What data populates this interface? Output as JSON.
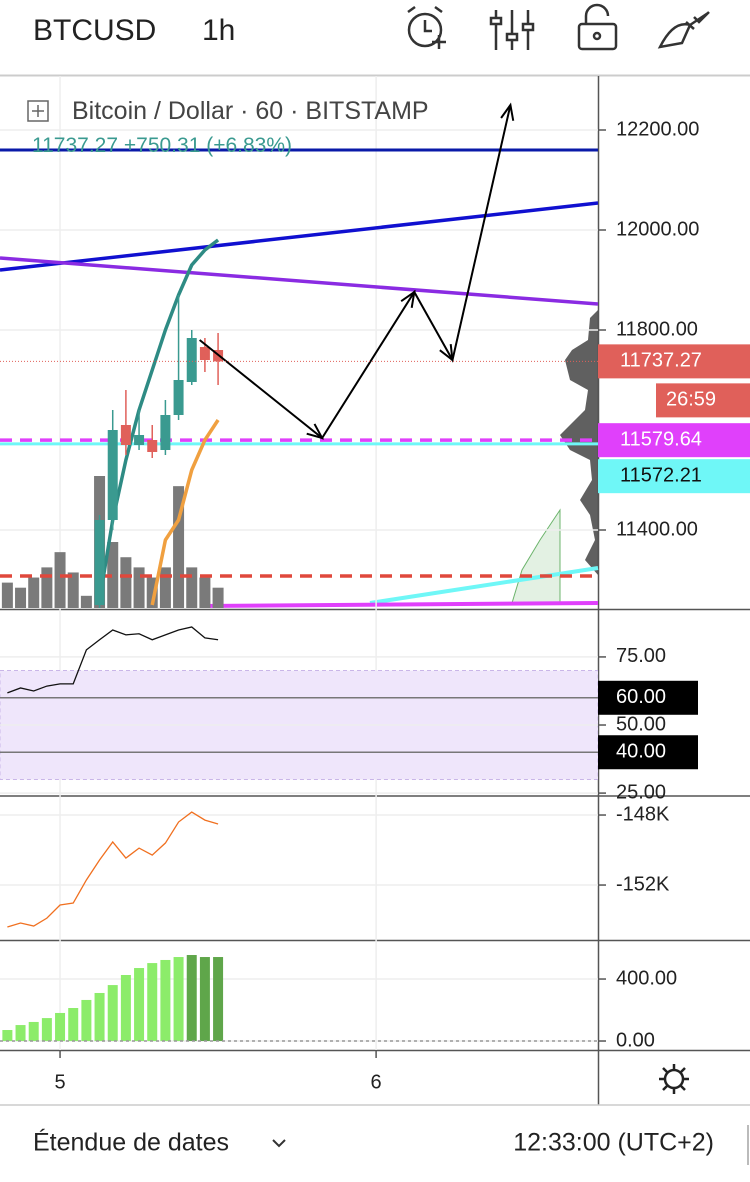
{
  "header": {
    "symbol": "BTCUSD",
    "interval": "1h"
  },
  "footer": {
    "range": "Étendue de dates",
    "time": "12:33:00 (UTC+2)"
  },
  "chart_data": [
    {
      "type": "candlestick",
      "title": "Bitcoin / Dollar",
      "interval": "60",
      "exchange": "BITSTAMP",
      "change": "+750.31",
      "change_percent": "(+6.83%)",
      "countdown": "26:59",
      "xlim": [
        -4.56,
        40.85
      ],
      "xticks": [
        {
          "value": 0,
          "label": "5"
        },
        {
          "value": 24,
          "label": "6"
        }
      ],
      "ylim": [
        11244,
        12308
      ],
      "yticks": [
        {
          "value": 11400,
          "label": "11400.00"
        },
        {
          "value": 11800,
          "label": "11800.00"
        },
        {
          "value": 12000,
          "label": "12000.00"
        },
        {
          "value": 12200,
          "label": "12200.00"
        }
      ],
      "grid": true,
      "x": [
        3,
        4,
        5,
        6,
        7,
        8,
        9,
        10,
        11,
        12
      ],
      "open": [
        11250,
        11420,
        11610,
        11570,
        11580,
        11560,
        11630,
        11696,
        11766,
        11760
      ],
      "high": [
        11430,
        11640,
        11680,
        11640,
        11610,
        11660,
        11870,
        11800,
        11784,
        11794
      ],
      "low": [
        11244,
        11400,
        11550,
        11560,
        11544,
        11550,
        11620,
        11690,
        11716,
        11690
      ],
      "close": [
        11420,
        11600,
        11570,
        11590,
        11556,
        11630,
        11700,
        11784,
        11740,
        11737.27
      ],
      "up_color": "#3a9a90",
      "down_color": "#e0605a",
      "volume": {
        "color": "#7a7a7a",
        "x": [
          -4,
          -3,
          -2,
          -1,
          0,
          1,
          2,
          3,
          4,
          5,
          6,
          7,
          8,
          9,
          10,
          11,
          12
        ],
        "values": [
          25,
          20,
          30,
          40,
          55,
          35,
          12,
          130,
          65,
          50,
          40,
          30,
          40,
          120,
          40,
          30,
          20
        ]
      },
      "ma_series": [
        {
          "color": "#2e8b84",
          "x": [
            3,
            4,
            5,
            6,
            7,
            8,
            9,
            10,
            11,
            12
          ],
          "values": [
            11260,
            11420,
            11540,
            11640,
            11720,
            11800,
            11870,
            11930,
            11960,
            11980
          ]
        },
        {
          "color": "#f0a040",
          "x": [
            7,
            8,
            9,
            10,
            11,
            12
          ],
          "values": [
            11250,
            11380,
            11420,
            11520,
            11580,
            11620
          ]
        }
      ],
      "levels": [
        {
          "value": 12160,
          "color": "#0a1aa8",
          "style": "solid"
        },
        {
          "value": 11308,
          "color": "#e0483c",
          "style": "dashed"
        },
        {
          "value": 11579.64,
          "color": "#e040fb",
          "style": "dashed",
          "labeled": true
        },
        {
          "value": 11572.21,
          "color": "#6ff7f7",
          "style": "solid",
          "labeled": true
        }
      ],
      "trendlines": [
        {
          "color": "#1010d0",
          "x": [
            -4.56,
            40.85
          ],
          "values": [
            11920,
            12054
          ]
        },
        {
          "color": "#8a2be2",
          "x": [
            -4.56,
            40.85
          ],
          "values": [
            11944,
            11852
          ]
        }
      ],
      "projection": {
        "color": "#000000",
        "x": [
          10.6,
          19.9,
          26.9,
          29.8,
          34.2
        ],
        "values": [
          11780,
          11584,
          11876,
          11740,
          12250
        ]
      }
    },
    {
      "type": "line",
      "ylim": [
        24.3,
        91.5
      ],
      "yticks": [
        {
          "value": 25,
          "label": "25.00"
        },
        {
          "value": 50,
          "label": "50.00"
        },
        {
          "value": 75,
          "label": "75.00"
        }
      ],
      "band": [
        30,
        70
      ],
      "band_color": "#efe6fb",
      "guides": [
        {
          "value": 60,
          "label": "60.00"
        },
        {
          "value": 40,
          "label": "40.00"
        }
      ],
      "x": [
        -4,
        -3,
        -2,
        -1,
        0,
        1,
        2,
        3,
        4,
        5,
        6,
        7,
        8,
        9,
        10,
        11,
        12
      ],
      "series": [
        {
          "color": "#111111",
          "values": [
            61.8,
            63.6,
            62.5,
            64.3,
            65.1,
            65.1,
            77.6,
            81.3,
            84.9,
            83.1,
            83.5,
            81.3,
            83.1,
            84.9,
            86.0,
            82.0,
            81.3
          ]
        }
      ]
    },
    {
      "type": "line",
      "ylim": [
        -155140,
        -146970
      ],
      "yticks": [
        {
          "value": -152000,
          "label": "-152K"
        },
        {
          "value": -148000,
          "label": "-148K"
        }
      ],
      "x": [
        -4,
        -3,
        -2,
        -1,
        0,
        1,
        2,
        3,
        4,
        5,
        6,
        7,
        8,
        9,
        10,
        11,
        12
      ],
      "series": [
        {
          "color": "#f07020",
          "values": [
            -154400,
            -154170,
            -154340,
            -153890,
            -153140,
            -153030,
            -151710,
            -150570,
            -149540,
            -150460,
            -149890,
            -150290,
            -149600,
            -148400,
            -147830,
            -148290,
            -148510
          ]
        }
      ]
    },
    {
      "type": "bar",
      "ylim": [
        -58,
        639
      ],
      "yticks": [
        {
          "value": 0,
          "label": "0.00"
        },
        {
          "value": 400,
          "label": "400.00"
        }
      ],
      "x": [
        -4,
        -3,
        -2,
        -1,
        0,
        1,
        2,
        3,
        4,
        5,
        6,
        7,
        8,
        9,
        10,
        11,
        12
      ],
      "values": [
        71,
        103,
        123,
        148,
        181,
        213,
        265,
        310,
        361,
        426,
        471,
        503,
        523,
        542,
        555,
        542,
        542
      ],
      "colors": [
        "#8cec6a",
        "#8cec6a",
        "#8cec6a",
        "#8cec6a",
        "#8cec6a",
        "#8cec6a",
        "#8cec6a",
        "#8cec6a",
        "#8cec6a",
        "#8cec6a",
        "#8cec6a",
        "#8cec6a",
        "#8cec6a",
        "#8cec6a",
        "#5fa64a",
        "#5fa64a",
        "#5fa64a"
      ]
    }
  ]
}
